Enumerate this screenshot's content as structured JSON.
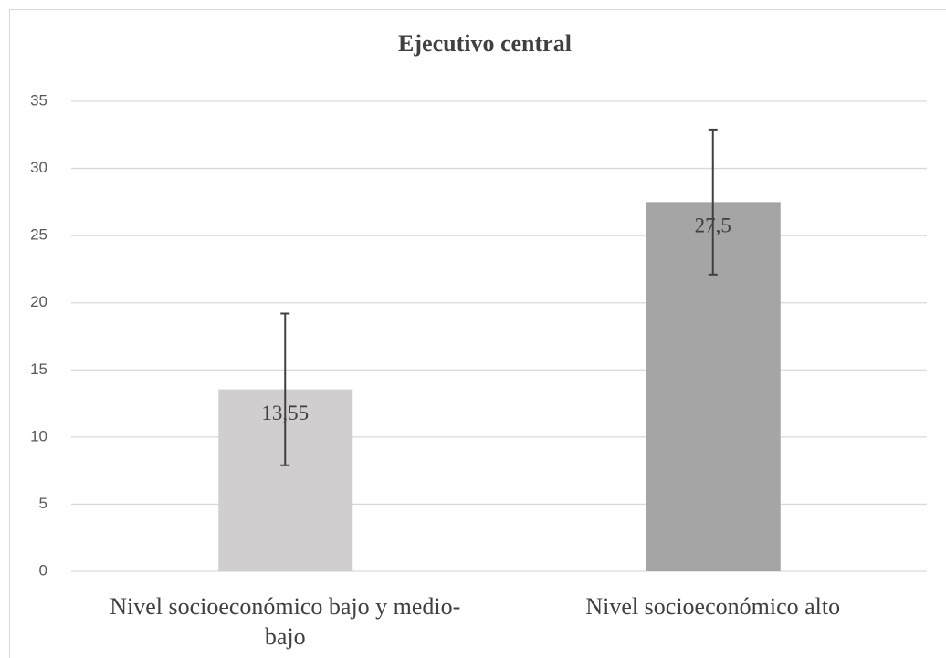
{
  "chart_data": {
    "type": "bar",
    "title": "Ejecutivo central",
    "categories": [
      "Nivel socioeconómico bajo y medio-bajo",
      "Nivel socioeconómico alto"
    ],
    "values": [
      13.55,
      27.5
    ],
    "value_labels": [
      "13,55",
      "27,5"
    ],
    "errors": [
      5.65,
      5.4
    ],
    "colors": [
      "#d0cece",
      "#a5a5a5"
    ],
    "ylim": [
      0,
      35
    ],
    "yticks": [
      0,
      5,
      10,
      15,
      20,
      25,
      30,
      35
    ],
    "grid": true
  }
}
